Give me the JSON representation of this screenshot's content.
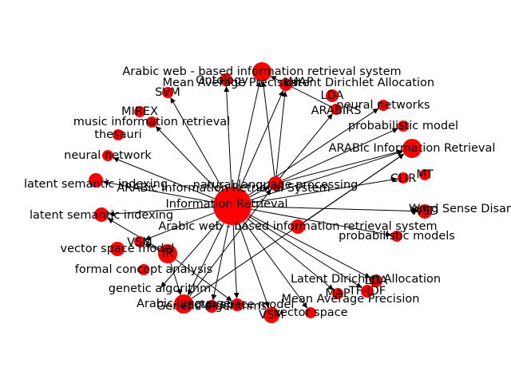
{
  "graph": {
    "node_color": "#ff0000",
    "edge_color": "#000000",
    "hub": "Information Retrieval",
    "nodes": [
      {
        "id": "IR_HUB",
        "label": "Information Retrieval"
      },
      {
        "id": "AWBIRS_TOP",
        "label": "Arabic web - based information retrieval system"
      },
      {
        "id": "ONTOLOGY",
        "label": "Ontology"
      },
      {
        "id": "MAP_TOP",
        "label": "MAP"
      },
      {
        "id": "MAP_TOP_LONG",
        "label": "Mean Average Precision"
      },
      {
        "id": "LDA_TOP_LONG",
        "label": "Latent Dirichlet Allocation"
      },
      {
        "id": "LDA_TOP",
        "label": "LDA"
      },
      {
        "id": "ARABIRS",
        "label": "ARABIRS"
      },
      {
        "id": "SVM",
        "label": "SVM"
      },
      {
        "id": "MIREX",
        "label": "MIREX"
      },
      {
        "id": "MUSIC_IR",
        "label": "music information retrieval"
      },
      {
        "id": "THESAURI",
        "label": "thesauri"
      },
      {
        "id": "NEURAL_NETWORKS",
        "label": "neural networks"
      },
      {
        "id": "PROB_MODEL",
        "label": "probabilistic model"
      },
      {
        "id": "ARABIC_IR",
        "label": "ARABic Information Retrieval"
      },
      {
        "id": "NEURAL_NETWORK",
        "label": "neural network"
      },
      {
        "id": "LSI_LEFT",
        "label": "latent semantic indexing"
      },
      {
        "id": "ARABIC_IRS",
        "label": "ARABic Information Retrieval System"
      },
      {
        "id": "NLP",
        "label": "natural language processing"
      },
      {
        "id": "CLIR",
        "label": "CLIR"
      },
      {
        "id": "MT",
        "label": "MT"
      },
      {
        "id": "LSI",
        "label": "latent semantic indexing"
      },
      {
        "id": "WSD_LONG",
        "label": "Word Sense Disambiguation"
      },
      {
        "id": "WSD",
        "label": "WSD"
      },
      {
        "id": "AWBIRS_MID",
        "label": "Arabic web - based information retrieval system"
      },
      {
        "id": "PROB_MODELS",
        "label": "probabilistic models"
      },
      {
        "id": "VSM_LEFT",
        "label": "VSM"
      },
      {
        "id": "VSPACE_MODEL_LEFT",
        "label": "vector space model"
      },
      {
        "id": "IR_SMALL",
        "label": "IR"
      },
      {
        "id": "FCA",
        "label": "formal concept analysis"
      },
      {
        "id": "LDA_BOTTOM_LONG",
        "label": "Latent Dirichlet Allocation"
      },
      {
        "id": "LDA_BOTTOM",
        "label": "LDA"
      },
      {
        "id": "GA",
        "label": "genetic algorithm"
      },
      {
        "id": "MAP_BOTTOM",
        "label": "MAP"
      },
      {
        "id": "TFIDF",
        "label": "TF-IDF"
      },
      {
        "id": "MAP_BOTTOM_LONG",
        "label": "Mean Average Precision"
      },
      {
        "id": "ARABIC_LANG",
        "label": "Arabic language"
      },
      {
        "id": "GA_BOTTOM",
        "label": "Genetic algorithms"
      },
      {
        "id": "VSPACE_MODEL",
        "label": "vector space model"
      },
      {
        "id": "VSM_BOTTOM",
        "label": "VSM"
      },
      {
        "id": "VSPACE",
        "label": "vector space"
      }
    ],
    "edges": [
      [
        "IR_HUB",
        "AWBIRS_TOP"
      ],
      [
        "IR_HUB",
        "ONTOLOGY"
      ],
      [
        "IR_HUB",
        "SVM"
      ],
      [
        "IR_HUB",
        "MAP_TOP"
      ],
      [
        "IR_HUB",
        "MUSIC_IR"
      ],
      [
        "IR_HUB",
        "NEURAL_NETWORK"
      ],
      [
        "IR_HUB",
        "LSI_LEFT"
      ],
      [
        "IR_HUB",
        "LSI"
      ],
      [
        "IR_HUB",
        "VSM_LEFT"
      ],
      [
        "IR_HUB",
        "GA"
      ],
      [
        "IR_HUB",
        "ARABIC_LANG"
      ],
      [
        "IR_HUB",
        "GA_BOTTOM"
      ],
      [
        "IR_HUB",
        "VSPACE_MODEL"
      ],
      [
        "IR_HUB",
        "VSM_BOTTOM"
      ],
      [
        "IR_HUB",
        "VSPACE"
      ],
      [
        "IR_HUB",
        "LDA_BOTTOM"
      ],
      [
        "IR_HUB",
        "TFIDF"
      ],
      [
        "IR_HUB",
        "MAP_BOTTOM"
      ],
      [
        "IR_HUB",
        "ARABIC_IR"
      ],
      [
        "IR_HUB",
        "NEURAL_NETWORKS"
      ],
      [
        "IR_HUB",
        "CLIR"
      ],
      [
        "IR_HUB",
        "WSD"
      ],
      [
        "IR_HUB",
        "PROB_MODELS"
      ],
      [
        "IR_HUB",
        "NLP"
      ],
      [
        "NLP",
        "ARABIC_IR"
      ],
      [
        "NLP",
        "AWBIRS_TOP"
      ],
      [
        "NLP",
        "MAP_TOP"
      ],
      [
        "NLP",
        "ARABIRS"
      ],
      [
        "NLP",
        "PROB_MODEL"
      ],
      [
        "AWBIRS_MID",
        "ARABIC_IR"
      ],
      [
        "ARABIC_LANG",
        "ARABIC_IR"
      ],
      [
        "ARABIC_LANG",
        "NLP"
      ],
      [
        "IR_SMALL",
        "VSM_LEFT"
      ],
      [
        "IR_SMALL",
        "LSI"
      ],
      [
        "IR_SMALL",
        "VSPACE_MODEL"
      ],
      [
        "IR_SMALL",
        "ARABIC_LANG"
      ],
      [
        "ARABIRS",
        "AWBIRS_TOP"
      ],
      [
        "WSD",
        "WSD_LONG"
      ]
    ]
  }
}
